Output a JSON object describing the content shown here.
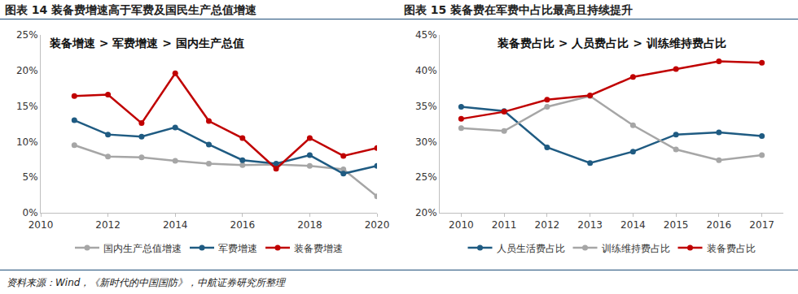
{
  "chart_data": [
    {
      "type": "line",
      "title": "图表 14 装备费增速高于军费及国民生产总值增速",
      "annotations": [
        "装备增速 > 军费增速 > 国内生产总值"
      ],
      "x": [
        2011,
        2012,
        2013,
        2014,
        2015,
        2016,
        2017,
        2018,
        2019,
        2020
      ],
      "xlim": [
        2010,
        2020
      ],
      "xticks": [
        2010,
        2012,
        2014,
        2016,
        2018,
        2020
      ],
      "ylim": [
        0,
        25
      ],
      "yticks": [
        {
          "value": 0,
          "label": "0%"
        },
        {
          "value": 5,
          "label": "5%"
        },
        {
          "value": 10,
          "label": "10%"
        },
        {
          "value": 15,
          "label": "15%"
        },
        {
          "value": 20,
          "label": "20%"
        },
        {
          "value": 25,
          "label": "25%"
        }
      ],
      "grid": false,
      "legend": "bottom",
      "series": [
        {
          "name": "国内生产总值增速",
          "color": "#a6a6a6",
          "marker": "circle",
          "line_style": "solid",
          "values": [
            9.5,
            7.9,
            7.8,
            7.3,
            6.9,
            6.7,
            6.8,
            6.6,
            6.1,
            2.3
          ]
        },
        {
          "name": "军费增速",
          "color": "#1f5b82",
          "marker": "circle",
          "line_style": "solid",
          "values": [
            13.0,
            11.0,
            10.7,
            12.0,
            9.6,
            7.4,
            6.9,
            8.1,
            5.5,
            6.6
          ]
        },
        {
          "name": "装备费增速",
          "color": "#c00000",
          "marker": "circle",
          "line_style": "solid",
          "values": [
            16.4,
            16.6,
            12.6,
            19.6,
            12.9,
            10.5,
            6.2,
            10.5,
            8.0,
            9.1
          ]
        }
      ]
    },
    {
      "type": "line",
      "title": "图表 15 装备费在军费中占比最高且持续提升",
      "annotations": [
        "装备费占比 > 人员费占比 > 训练维持费占比"
      ],
      "categories": [
        "2010",
        "2011",
        "2012",
        "2013",
        "2014",
        "2015",
        "2016",
        "2017"
      ],
      "ylim": [
        20,
        45
      ],
      "yticks": [
        {
          "value": 20,
          "label": "20%"
        },
        {
          "value": 25,
          "label": "25%"
        },
        {
          "value": 30,
          "label": "30%"
        },
        {
          "value": 35,
          "label": "35%"
        },
        {
          "value": 40,
          "label": "40%"
        },
        {
          "value": 45,
          "label": "45%"
        }
      ],
      "grid": false,
      "legend": "bottom",
      "series": [
        {
          "name": "人员生活费占比",
          "color": "#1f5b82",
          "marker": "circle",
          "line_style": "solid",
          "values": [
            34.9,
            34.3,
            29.2,
            27.0,
            28.6,
            31.0,
            31.3,
            30.8
          ]
        },
        {
          "name": "训练维持费占比",
          "color": "#a6a6a6",
          "marker": "circle",
          "line_style": "solid",
          "values": [
            31.9,
            31.5,
            34.9,
            36.4,
            32.3,
            28.9,
            27.4,
            28.1
          ]
        },
        {
          "name": "装备费占比",
          "color": "#c00000",
          "marker": "circle",
          "line_style": "solid",
          "values": [
            33.2,
            34.2,
            35.9,
            36.5,
            39.1,
            40.2,
            41.3,
            41.1
          ]
        }
      ]
    }
  ],
  "source": "资料来源：Wind，《新时代的中国国防》，中航证券研究所整理"
}
